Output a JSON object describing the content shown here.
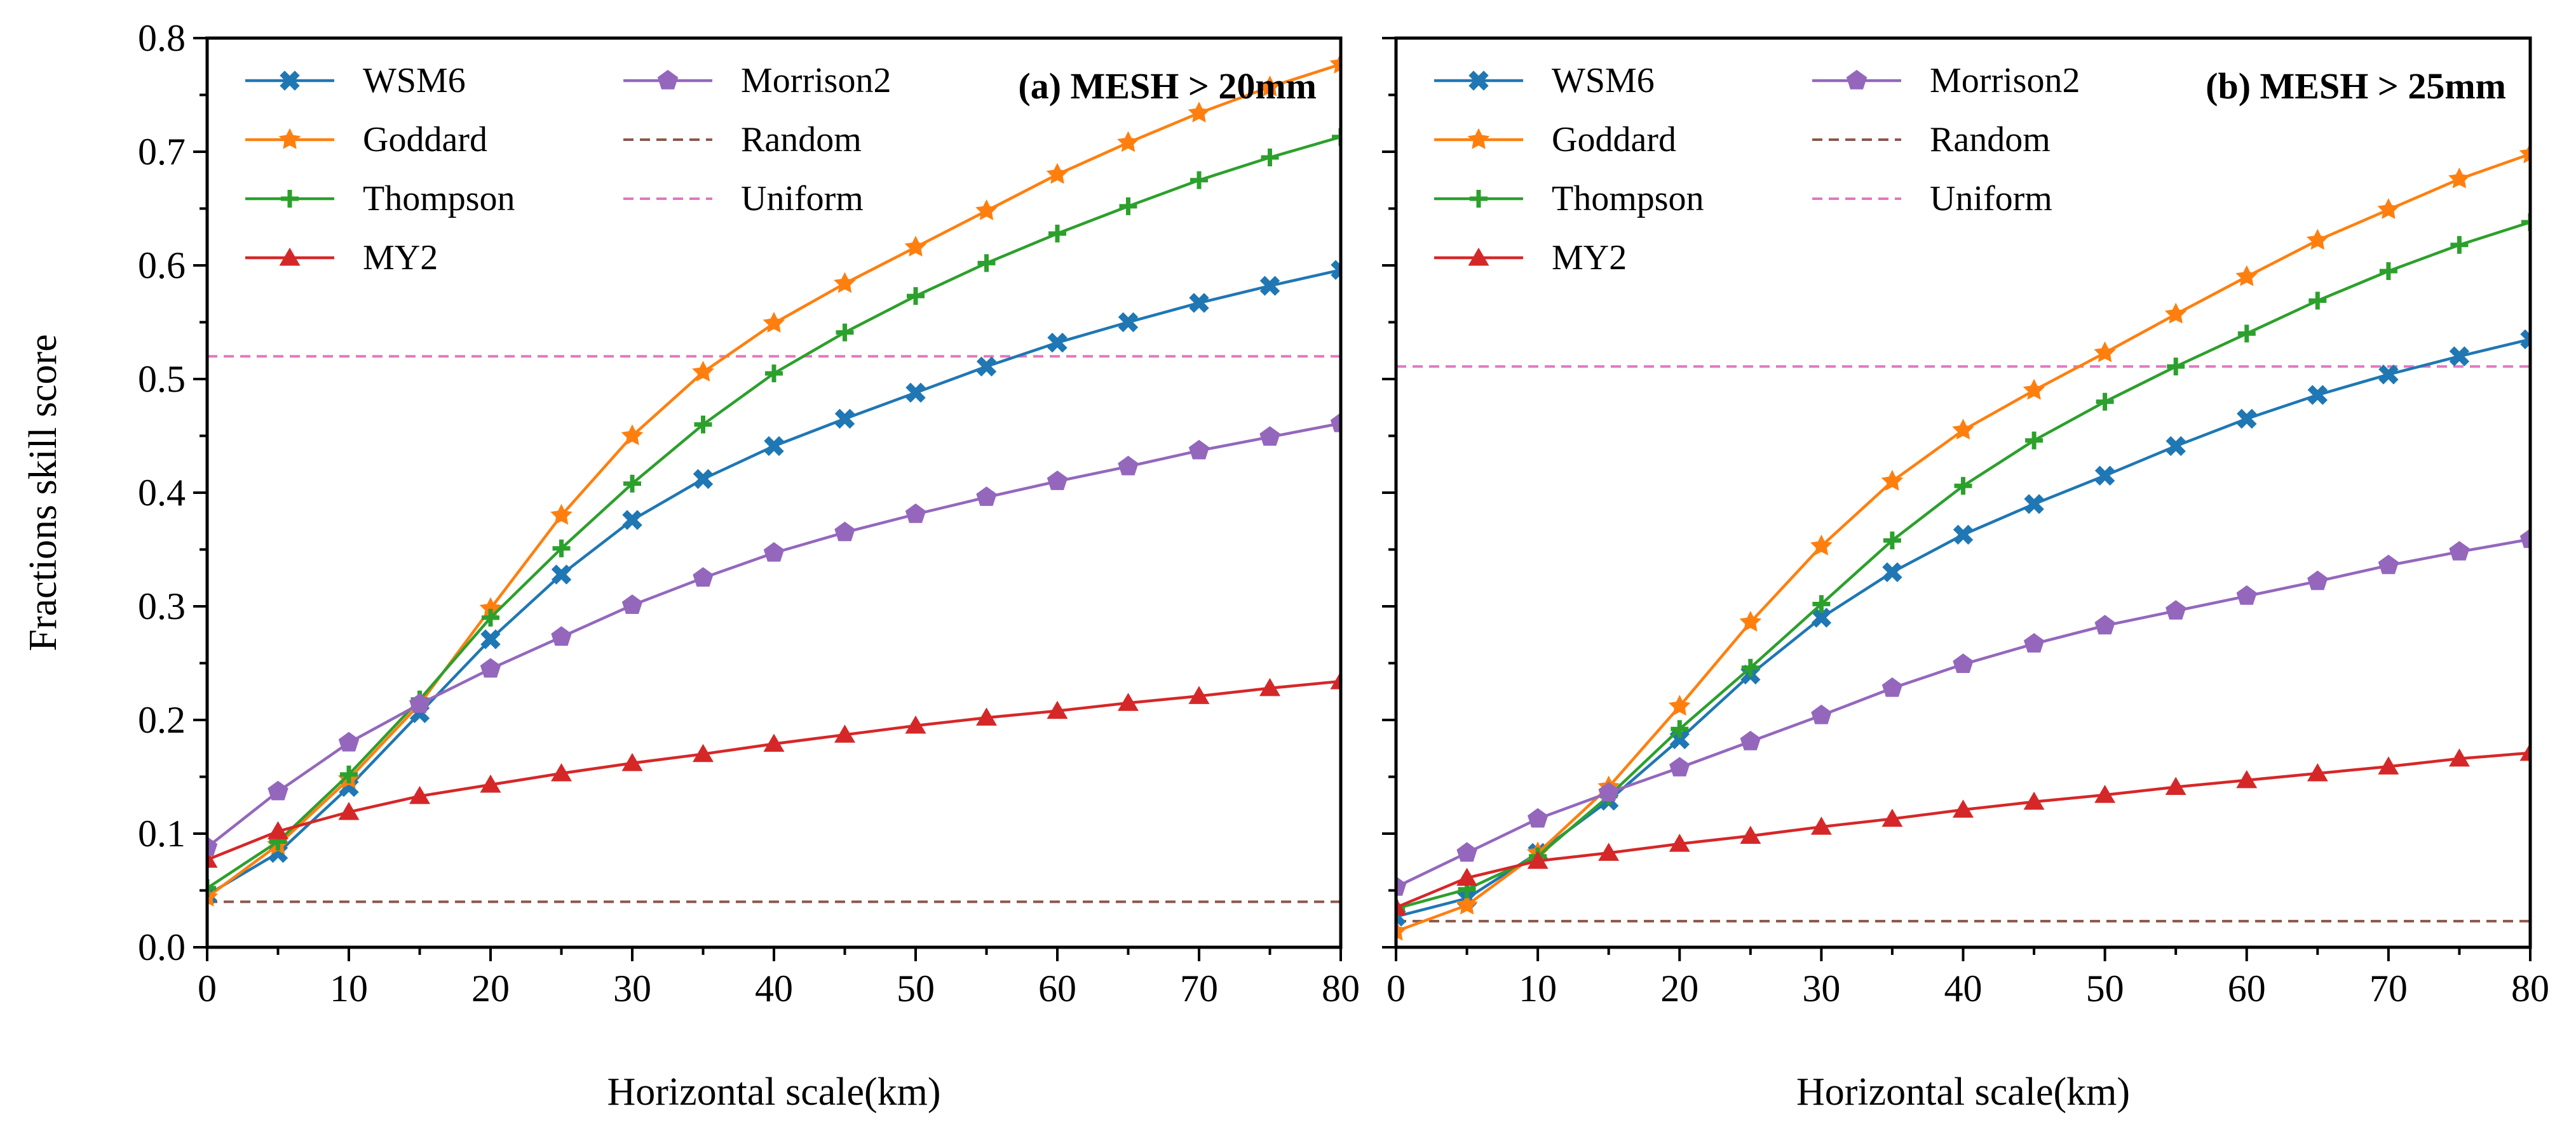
{
  "chart_data": [
    {
      "type": "line",
      "title": "(a) MESH > 20mm",
      "xlabel": "Horizontal scale(km)",
      "ylabel": "Fractions skill score",
      "xlim": [
        0,
        80
      ],
      "ylim": [
        0,
        0.8
      ],
      "xticks": [
        "0",
        "10",
        "20",
        "30",
        "40",
        "50",
        "60",
        "70",
        "80"
      ],
      "yticks": [
        "0.0",
        "0.1",
        "0.2",
        "0.3",
        "0.4",
        "0.5",
        "0.6",
        "0.7",
        "0.8"
      ],
      "x": [
        0,
        5,
        10,
        15,
        20,
        25,
        30,
        35,
        40,
        45,
        50,
        55,
        60,
        65,
        70,
        75,
        80
      ],
      "series": [
        {
          "name": "WSM6",
          "color": "#1f77b4",
          "marker": "cross",
          "values": [
            0.046,
            0.083,
            0.141,
            0.206,
            0.271,
            0.328,
            0.376,
            0.412,
            0.441,
            0.465,
            0.488,
            0.511,
            0.532,
            0.55,
            0.567,
            0.582,
            0.596
          ]
        },
        {
          "name": "Goddard",
          "color": "#ff7f0e",
          "marker": "star",
          "values": [
            0.044,
            0.09,
            0.148,
            0.214,
            0.298,
            0.38,
            0.45,
            0.506,
            0.549,
            0.584,
            0.616,
            0.648,
            0.68,
            0.708,
            0.734,
            0.757,
            0.777
          ]
        },
        {
          "name": "Thompson",
          "color": "#2ca02c",
          "marker": "plus",
          "values": [
            0.052,
            0.093,
            0.152,
            0.218,
            0.29,
            0.351,
            0.408,
            0.46,
            0.505,
            0.541,
            0.573,
            0.602,
            0.628,
            0.652,
            0.675,
            0.695,
            0.713
          ]
        },
        {
          "name": "MY2",
          "color": "#d62728",
          "marker": "triangle",
          "values": [
            0.077,
            0.102,
            0.119,
            0.133,
            0.143,
            0.153,
            0.162,
            0.17,
            0.179,
            0.187,
            0.195,
            0.202,
            0.208,
            0.215,
            0.221,
            0.228,
            0.234
          ]
        },
        {
          "name": "Morrison2",
          "color": "#9467bd",
          "marker": "pentagon",
          "values": [
            0.088,
            0.137,
            0.18,
            0.214,
            0.245,
            0.273,
            0.301,
            0.325,
            0.347,
            0.365,
            0.381,
            0.396,
            0.41,
            0.423,
            0.437,
            0.449,
            0.461
          ]
        }
      ],
      "references": [
        {
          "name": "Random",
          "color": "#8c564b",
          "value": 0.04
        },
        {
          "name": "Uniform",
          "color": "#e377c2",
          "value": 0.52
        }
      ]
    },
    {
      "type": "line",
      "title": "(b) MESH > 25mm",
      "xlabel": "Horizontal scale(km)",
      "ylabel": "",
      "xlim": [
        0,
        80
      ],
      "ylim": [
        0,
        0.8
      ],
      "xticks": [
        "0",
        "10",
        "20",
        "30",
        "40",
        "50",
        "60",
        "70",
        "80"
      ],
      "yticks": [],
      "x": [
        0,
        5,
        10,
        15,
        20,
        25,
        30,
        35,
        40,
        45,
        50,
        55,
        60,
        65,
        70,
        75,
        80
      ],
      "series": [
        {
          "name": "WSM6",
          "color": "#1f77b4",
          "marker": "cross",
          "values": [
            0.027,
            0.043,
            0.083,
            0.129,
            0.183,
            0.24,
            0.29,
            0.33,
            0.363,
            0.39,
            0.415,
            0.441,
            0.465,
            0.486,
            0.504,
            0.52,
            0.535
          ]
        },
        {
          "name": "Goddard",
          "color": "#ff7f0e",
          "marker": "star",
          "values": [
            0.014,
            0.037,
            0.083,
            0.141,
            0.212,
            0.286,
            0.353,
            0.41,
            0.455,
            0.49,
            0.523,
            0.557,
            0.59,
            0.622,
            0.649,
            0.676,
            0.698
          ]
        },
        {
          "name": "Thompson",
          "color": "#2ca02c",
          "marker": "plus",
          "values": [
            0.034,
            0.051,
            0.08,
            0.133,
            0.192,
            0.246,
            0.302,
            0.358,
            0.406,
            0.446,
            0.48,
            0.511,
            0.54,
            0.569,
            0.595,
            0.618,
            0.638
          ]
        },
        {
          "name": "MY2",
          "color": "#d62728",
          "marker": "triangle",
          "values": [
            0.035,
            0.061,
            0.076,
            0.083,
            0.091,
            0.098,
            0.106,
            0.113,
            0.121,
            0.128,
            0.134,
            0.141,
            0.147,
            0.153,
            0.159,
            0.166,
            0.171
          ]
        },
        {
          "name": "Morrison2",
          "color": "#9467bd",
          "marker": "pentagon",
          "values": [
            0.053,
            0.083,
            0.113,
            0.136,
            0.158,
            0.181,
            0.204,
            0.228,
            0.249,
            0.267,
            0.283,
            0.296,
            0.309,
            0.322,
            0.336,
            0.348,
            0.359
          ]
        }
      ],
      "references": [
        {
          "name": "Random",
          "color": "#8c564b",
          "value": 0.023
        },
        {
          "name": "Uniform",
          "color": "#e377c2",
          "value": 0.511
        }
      ]
    }
  ]
}
